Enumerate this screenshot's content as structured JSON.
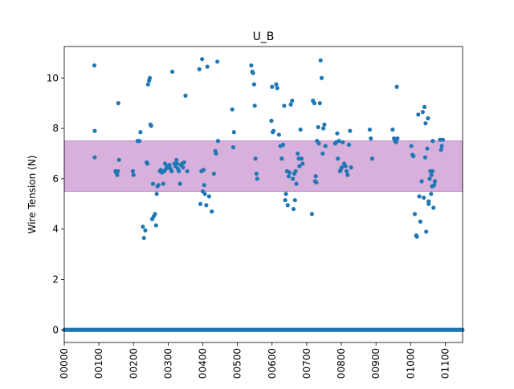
{
  "chart_data": {
    "type": "scatter",
    "title": "U_B",
    "xlabel": "",
    "ylabel": "Wire Tension (N)",
    "xlim": [
      0,
      1150
    ],
    "ylim": [
      -0.5,
      11.25
    ],
    "x_ticks": [
      {
        "value": 0,
        "label": "00000"
      },
      {
        "value": 100,
        "label": "00100"
      },
      {
        "value": 200,
        "label": "00200"
      },
      {
        "value": 300,
        "label": "00300"
      },
      {
        "value": 400,
        "label": "00400"
      },
      {
        "value": 500,
        "label": "00500"
      },
      {
        "value": 600,
        "label": "00600"
      },
      {
        "value": 700,
        "label": "00700"
      },
      {
        "value": 800,
        "label": "00800"
      },
      {
        "value": 900,
        "label": "00900"
      },
      {
        "value": 1000,
        "label": "01000"
      },
      {
        "value": 1100,
        "label": "01100"
      }
    ],
    "y_ticks": [
      {
        "value": 0,
        "label": "0"
      },
      {
        "value": 2,
        "label": "2"
      },
      {
        "value": 4,
        "label": "4"
      },
      {
        "value": 6,
        "label": "6"
      },
      {
        "value": 8,
        "label": "8"
      },
      {
        "value": 10,
        "label": "10"
      }
    ],
    "band": {
      "ymin": 5.5,
      "ymax": 7.5,
      "color": "#d8b0dc"
    },
    "grid": false,
    "colors": {
      "points": "#1f77b4",
      "axes": "#000000"
    },
    "series": [
      {
        "zero_row": {
          "x_start": 0,
          "x_end": 1150,
          "x_step": 2,
          "y": 0
        },
        "points": [
          [
            87,
            10.5
          ],
          [
            88,
            7.9
          ],
          [
            88,
            6.85
          ],
          [
            148,
            6.3
          ],
          [
            150,
            6.25
          ],
          [
            153,
            6.15
          ],
          [
            155,
            6.3
          ],
          [
            158,
            6.75
          ],
          [
            156,
            9.0
          ],
          [
            198,
            6.3
          ],
          [
            200,
            6.15
          ],
          [
            212,
            7.5
          ],
          [
            217,
            7.5
          ],
          [
            220,
            7.85
          ],
          [
            227,
            4.1
          ],
          [
            230,
            3.65
          ],
          [
            234,
            3.95
          ],
          [
            238,
            6.65
          ],
          [
            240,
            6.6
          ],
          [
            242,
            9.75
          ],
          [
            245,
            9.9
          ],
          [
            247,
            10.0
          ],
          [
            249,
            8.15
          ],
          [
            251,
            8.1
          ],
          [
            254,
            4.4
          ],
          [
            256,
            5.8
          ],
          [
            258,
            4.5
          ],
          [
            262,
            4.6
          ],
          [
            265,
            4.15
          ],
          [
            267,
            5.4
          ],
          [
            269,
            5.7
          ],
          [
            272,
            5.75
          ],
          [
            276,
            6.3
          ],
          [
            279,
            6.35
          ],
          [
            282,
            6.25
          ],
          [
            286,
            5.8
          ],
          [
            289,
            6.3
          ],
          [
            291,
            6.6
          ],
          [
            294,
            6.4
          ],
          [
            297,
            6.5
          ],
          [
            300,
            6.45
          ],
          [
            304,
            6.55
          ],
          [
            307,
            6.4
          ],
          [
            310,
            6.3
          ],
          [
            312,
            10.25
          ],
          [
            318,
            6.6
          ],
          [
            321,
            6.5
          ],
          [
            324,
            6.75
          ],
          [
            326,
            6.6
          ],
          [
            328,
            6.4
          ],
          [
            331,
            6.3
          ],
          [
            334,
            5.8
          ],
          [
            337,
            6.55
          ],
          [
            340,
            6.6
          ],
          [
            343,
            6.45
          ],
          [
            346,
            6.65
          ],
          [
            350,
            9.3
          ],
          [
            355,
            6.3
          ],
          [
            390,
            10.35
          ],
          [
            393,
            5.0
          ],
          [
            396,
            6.3
          ],
          [
            398,
            10.75
          ],
          [
            400,
            5.5
          ],
          [
            402,
            6.35
          ],
          [
            404,
            5.75
          ],
          [
            406,
            5.4
          ],
          [
            410,
            4.95
          ],
          [
            413,
            10.45
          ],
          [
            418,
            5.3
          ],
          [
            426,
            4.7
          ],
          [
            432,
            6.2
          ],
          [
            436,
            7.1
          ],
          [
            438,
            7.0
          ],
          [
            442,
            10.65
          ],
          [
            444,
            7.5
          ],
          [
            485,
            8.75
          ],
          [
            488,
            7.25
          ],
          [
            490,
            7.85
          ],
          [
            540,
            10.5
          ],
          [
            543,
            10.25
          ],
          [
            545,
            10.2
          ],
          [
            548,
            9.75
          ],
          [
            550,
            8.9
          ],
          [
            552,
            6.8
          ],
          [
            555,
            6.2
          ],
          [
            557,
            6.0
          ],
          [
            598,
            8.3
          ],
          [
            600,
            9.65
          ],
          [
            602,
            7.85
          ],
          [
            604,
            7.9
          ],
          [
            612,
            9.75
          ],
          [
            615,
            9.6
          ],
          [
            620,
            7.75
          ],
          [
            624,
            7.3
          ],
          [
            628,
            6.8
          ],
          [
            632,
            7.35
          ],
          [
            635,
            8.9
          ],
          [
            638,
            5.15
          ],
          [
            640,
            5.4
          ],
          [
            643,
            6.3
          ],
          [
            645,
            4.95
          ],
          [
            648,
            6.1
          ],
          [
            650,
            6.25
          ],
          [
            654,
            8.95
          ],
          [
            658,
            9.1
          ],
          [
            660,
            6.0
          ],
          [
            662,
            4.8
          ],
          [
            664,
            6.2
          ],
          [
            666,
            5.15
          ],
          [
            668,
            6.3
          ],
          [
            670,
            5.8
          ],
          [
            674,
            7.0
          ],
          [
            677,
            6.8
          ],
          [
            679,
            6.5
          ],
          [
            682,
            7.95
          ],
          [
            685,
            6.8
          ],
          [
            688,
            6.6
          ],
          [
            715,
            4.6
          ],
          [
            718,
            9.1
          ],
          [
            722,
            9.0
          ],
          [
            724,
            5.9
          ],
          [
            726,
            6.1
          ],
          [
            728,
            5.85
          ],
          [
            730,
            7.5
          ],
          [
            733,
            8.05
          ],
          [
            735,
            7.4
          ],
          [
            738,
            9.0
          ],
          [
            740,
            10.7
          ],
          [
            743,
            10.0
          ],
          [
            746,
            7.0
          ],
          [
            748,
            8.0
          ],
          [
            751,
            8.15
          ],
          [
            754,
            7.3
          ],
          [
            782,
            7.4
          ],
          [
            785,
            7.45
          ],
          [
            788,
            7.8
          ],
          [
            790,
            6.8
          ],
          [
            793,
            7.5
          ],
          [
            796,
            6.3
          ],
          [
            798,
            6.35
          ],
          [
            801,
            6.45
          ],
          [
            804,
            7.45
          ],
          [
            808,
            6.6
          ],
          [
            812,
            6.5
          ],
          [
            815,
            6.3
          ],
          [
            818,
            6.15
          ],
          [
            822,
            7.35
          ],
          [
            825,
            7.9
          ],
          [
            828,
            6.45
          ],
          [
            882,
            7.95
          ],
          [
            885,
            7.6
          ],
          [
            889,
            6.8
          ],
          [
            948,
            7.95
          ],
          [
            952,
            7.6
          ],
          [
            955,
            7.5
          ],
          [
            958,
            7.45
          ],
          [
            960,
            9.65
          ],
          [
            962,
            7.6
          ],
          [
            1002,
            7.3
          ],
          [
            1005,
            6.95
          ],
          [
            1008,
            6.9
          ],
          [
            1012,
            4.6
          ],
          [
            1016,
            3.75
          ],
          [
            1018,
            3.7
          ],
          [
            1022,
            8.55
          ],
          [
            1025,
            5.3
          ],
          [
            1028,
            4.3
          ],
          [
            1032,
            5.9
          ],
          [
            1035,
            8.65
          ],
          [
            1038,
            5.25
          ],
          [
            1040,
            8.85
          ],
          [
            1042,
            6.85
          ],
          [
            1045,
            3.9
          ],
          [
            1048,
            7.2
          ],
          [
            1050,
            8.4
          ],
          [
            1052,
            5.1
          ],
          [
            1055,
            6.0
          ],
          [
            1057,
            6.3
          ],
          [
            1059,
            5.4
          ],
          [
            1062,
            5.7
          ],
          [
            1064,
            7.5
          ],
          [
            1066,
            4.85
          ],
          [
            1068,
            5.75
          ],
          [
            1070,
            5.9
          ],
          [
            1085,
            7.55
          ],
          [
            1088,
            7.15
          ],
          [
            1090,
            7.3
          ],
          [
            1093,
            7.55
          ],
          [
            1043,
            8.2
          ],
          [
            1052,
            5.0
          ],
          [
            1060,
            6.15
          ],
          [
            1063,
            6.3
          ]
        ]
      }
    ]
  }
}
